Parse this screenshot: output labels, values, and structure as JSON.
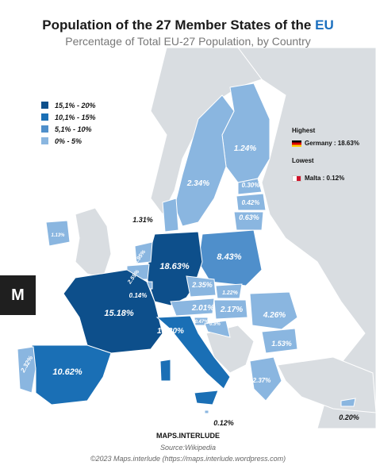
{
  "header": {
    "title": "Population of the 27 Member States of the",
    "title_highlight": "EU",
    "subtitle": "Percentage of Total EU-27 Population, by Country"
  },
  "legend": [
    {
      "label": "15,1% - 20%",
      "color": "#0d4f8b"
    },
    {
      "label": "10,1% - 15%",
      "color": "#1a6fb5"
    },
    {
      "label": "5,1% - 10%",
      "color": "#4f8fcb"
    },
    {
      "label": "0% - 5%",
      "color": "#8ab6e0"
    }
  ],
  "highlights": {
    "highest_title": "Highest",
    "highest_value": "Germany : 18.63%",
    "lowest_title": "Lowest",
    "lowest_value": "Malta : 0.12%"
  },
  "map_labels": {
    "germany": "18.63%",
    "france": "15.18%",
    "italy": "13.20%",
    "spain": "10.62%",
    "poland": "8.43%",
    "romania": "4.26%",
    "netherlands": "3.95%",
    "belgium": "2.59%",
    "czechia": "2.35%",
    "sweden": "2.34%",
    "portugal": "2.32%",
    "greece": "2.37%",
    "hungary": "2.17%",
    "austria": "2.01%",
    "bulgaria": "1.53%",
    "denmark": "1.31%",
    "finland": "1.24%",
    "slovakia": "1.22%",
    "ireland": "1.13%",
    "croatia": "0.9%",
    "lithuania": "0.63%",
    "slovenia": "0.47%",
    "latvia": "0.42%",
    "estonia": "0.30%",
    "luxembourg": "0.14%",
    "malta": "0.12%",
    "cyprus": "0.20%"
  },
  "watermark": "M",
  "footer": {
    "brand": "MAPS.INTERLUDE",
    "source": "Source:Wikipedia",
    "copyright": "©2023 Maps.interlude (https://maps.interlude.wordpress.com)"
  }
}
